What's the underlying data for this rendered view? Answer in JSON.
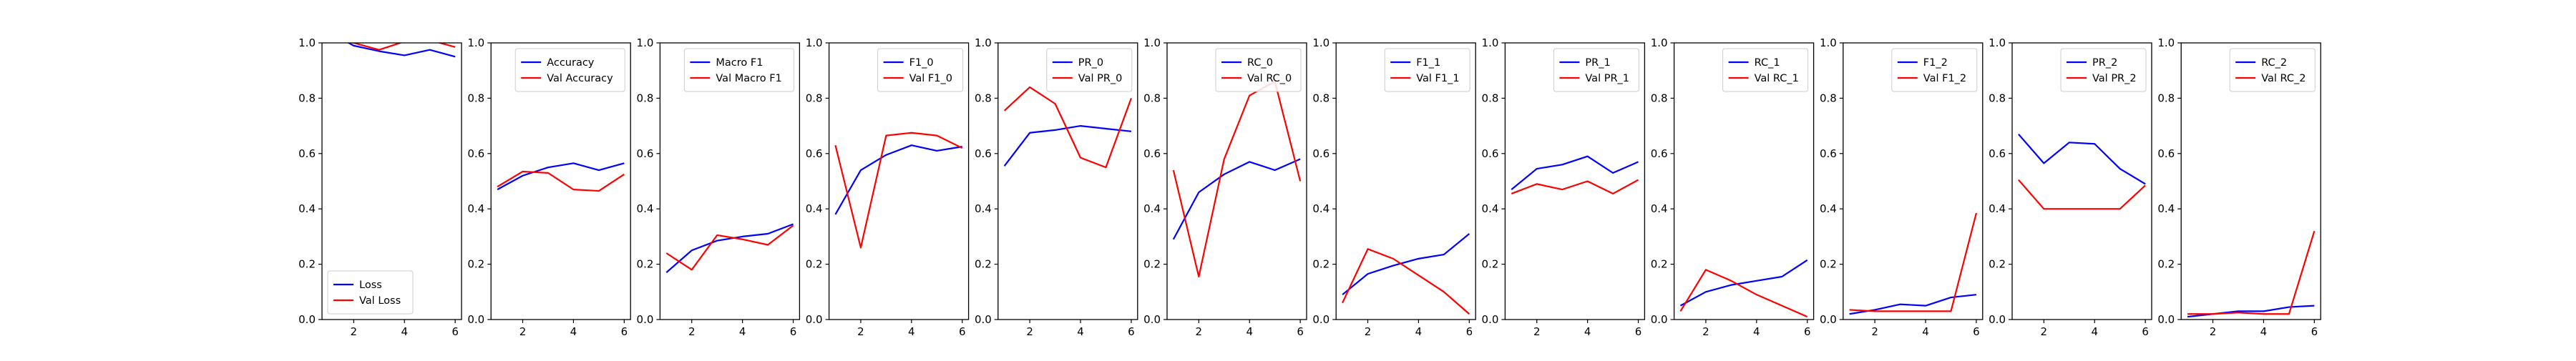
{
  "chart_data": [
    {
      "type": "line",
      "x": [
        1,
        2,
        3,
        4,
        5,
        6
      ],
      "xticks": [
        "2",
        "4",
        "6"
      ],
      "yticks": [
        "0.0",
        "0.2",
        "0.4",
        "0.6",
        "0.8",
        "1.0"
      ],
      "ylim": [
        0,
        1
      ],
      "legend_loc": "lower-left",
      "series": [
        {
          "name": "Loss",
          "color": "#0000ff",
          "values": [
            1.04,
            0.99,
            0.97,
            0.955,
            0.975,
            0.95
          ]
        },
        {
          "name": "Val Loss",
          "color": "#ff0000",
          "values": [
            1.02,
            1.0,
            0.975,
            1.005,
            1.01,
            0.985
          ]
        }
      ]
    },
    {
      "type": "line",
      "x": [
        1,
        2,
        3,
        4,
        5,
        6
      ],
      "xticks": [
        "2",
        "4",
        "6"
      ],
      "yticks": [
        "0.0",
        "0.2",
        "0.4",
        "0.6",
        "0.8",
        "1.0"
      ],
      "ylim": [
        0,
        1
      ],
      "legend_loc": "upper-right",
      "series": [
        {
          "name": "Accuracy",
          "color": "#0000ff",
          "values": [
            0.47,
            0.52,
            0.55,
            0.565,
            0.54,
            0.565
          ]
        },
        {
          "name": "Val Accuracy",
          "color": "#ff0000",
          "values": [
            0.48,
            0.535,
            0.53,
            0.47,
            0.465,
            0.525
          ]
        }
      ]
    },
    {
      "type": "line",
      "x": [
        1,
        2,
        3,
        4,
        5,
        6
      ],
      "xticks": [
        "2",
        "4",
        "6"
      ],
      "yticks": [
        "0.0",
        "0.2",
        "0.4",
        "0.6",
        "0.8",
        "1.0"
      ],
      "ylim": [
        0,
        1
      ],
      "legend_loc": "upper-right",
      "series": [
        {
          "name": "Macro F1",
          "color": "#0000ff",
          "values": [
            0.17,
            0.25,
            0.285,
            0.3,
            0.31,
            0.345
          ]
        },
        {
          "name": "Val Macro F1",
          "color": "#ff0000",
          "values": [
            0.24,
            0.18,
            0.305,
            0.29,
            0.27,
            0.34
          ]
        }
      ]
    },
    {
      "type": "line",
      "x": [
        1,
        2,
        3,
        4,
        5,
        6
      ],
      "xticks": [
        "2",
        "4",
        "6"
      ],
      "yticks": [
        "0.0",
        "0.2",
        "0.4",
        "0.6",
        "0.8",
        "1.0"
      ],
      "ylim": [
        0,
        1
      ],
      "legend_loc": "upper-right",
      "series": [
        {
          "name": "F1_0",
          "color": "#0000ff",
          "values": [
            0.38,
            0.54,
            0.595,
            0.63,
            0.61,
            0.625
          ]
        },
        {
          "name": "Val F1_0",
          "color": "#ff0000",
          "values": [
            0.63,
            0.26,
            0.665,
            0.675,
            0.665,
            0.62
          ]
        }
      ]
    },
    {
      "type": "line",
      "x": [
        1,
        2,
        3,
        4,
        5,
        6
      ],
      "xticks": [
        "2",
        "4",
        "6"
      ],
      "yticks": [
        "0.0",
        "0.2",
        "0.4",
        "0.6",
        "0.8",
        "1.0"
      ],
      "ylim": [
        0,
        1
      ],
      "legend_loc": "upper-right",
      "series": [
        {
          "name": "PR_0",
          "color": "#0000ff",
          "values": [
            0.555,
            0.675,
            0.685,
            0.7,
            0.69,
            0.68
          ]
        },
        {
          "name": "Val PR_0",
          "color": "#ff0000",
          "values": [
            0.755,
            0.84,
            0.78,
            0.585,
            0.55,
            0.8
          ]
        }
      ]
    },
    {
      "type": "line",
      "x": [
        1,
        2,
        3,
        4,
        5,
        6
      ],
      "xticks": [
        "2",
        "4",
        "6"
      ],
      "yticks": [
        "0.0",
        "0.2",
        "0.4",
        "0.6",
        "0.8",
        "1.0"
      ],
      "ylim": [
        0,
        1
      ],
      "legend_loc": "upper-right",
      "series": [
        {
          "name": "RC_0",
          "color": "#0000ff",
          "values": [
            0.29,
            0.46,
            0.525,
            0.57,
            0.54,
            0.58
          ]
        },
        {
          "name": "Val RC_0",
          "color": "#ff0000",
          "values": [
            0.54,
            0.155,
            0.58,
            0.81,
            0.86,
            0.5
          ]
        }
      ]
    },
    {
      "type": "line",
      "x": [
        1,
        2,
        3,
        4,
        5,
        6
      ],
      "xticks": [
        "2",
        "4",
        "6"
      ],
      "yticks": [
        "0.0",
        "0.2",
        "0.4",
        "0.6",
        "0.8",
        "1.0"
      ],
      "ylim": [
        0,
        1
      ],
      "legend_loc": "upper-right",
      "series": [
        {
          "name": "F1_1",
          "color": "#0000ff",
          "values": [
            0.09,
            0.165,
            0.195,
            0.22,
            0.235,
            0.31
          ]
        },
        {
          "name": "Val F1_1",
          "color": "#ff0000",
          "values": [
            0.06,
            0.255,
            0.22,
            0.16,
            0.1,
            0.02
          ]
        }
      ]
    },
    {
      "type": "line",
      "x": [
        1,
        2,
        3,
        4,
        5,
        6
      ],
      "xticks": [
        "2",
        "4",
        "6"
      ],
      "yticks": [
        "0.0",
        "0.2",
        "0.4",
        "0.6",
        "0.8",
        "1.0"
      ],
      "ylim": [
        0,
        1
      ],
      "legend_loc": "upper-right",
      "series": [
        {
          "name": "PR_1",
          "color": "#0000ff",
          "values": [
            0.47,
            0.545,
            0.56,
            0.59,
            0.53,
            0.57
          ]
        },
        {
          "name": "Val PR_1",
          "color": "#ff0000",
          "values": [
            0.455,
            0.49,
            0.47,
            0.5,
            0.455,
            0.505
          ]
        }
      ]
    },
    {
      "type": "line",
      "x": [
        1,
        2,
        3,
        4,
        5,
        6
      ],
      "xticks": [
        "2",
        "4",
        "6"
      ],
      "yticks": [
        "0.0",
        "0.2",
        "0.4",
        "0.6",
        "0.8",
        "1.0"
      ],
      "ylim": [
        0,
        1
      ],
      "legend_loc": "upper-right",
      "series": [
        {
          "name": "RC_1",
          "color": "#0000ff",
          "values": [
            0.05,
            0.1,
            0.125,
            0.14,
            0.155,
            0.215
          ]
        },
        {
          "name": "Val RC_1",
          "color": "#ff0000",
          "values": [
            0.03,
            0.18,
            0.14,
            0.09,
            0.05,
            0.01
          ]
        }
      ]
    },
    {
      "type": "line",
      "x": [
        1,
        2,
        3,
        4,
        5,
        6
      ],
      "xticks": [
        "2",
        "4",
        "6"
      ],
      "yticks": [
        "0.0",
        "0.2",
        "0.4",
        "0.6",
        "0.8",
        "1.0"
      ],
      "ylim": [
        0,
        1
      ],
      "legend_loc": "upper-right",
      "series": [
        {
          "name": "F1_2",
          "color": "#0000ff",
          "values": [
            0.02,
            0.035,
            0.055,
            0.05,
            0.08,
            0.09
          ]
        },
        {
          "name": "Val F1_2",
          "color": "#ff0000",
          "values": [
            0.035,
            0.03,
            0.03,
            0.03,
            0.03,
            0.385
          ]
        }
      ]
    },
    {
      "type": "line",
      "x": [
        1,
        2,
        3,
        4,
        5,
        6
      ],
      "xticks": [
        "2",
        "4",
        "6"
      ],
      "yticks": [
        "0.0",
        "0.2",
        "0.4",
        "0.6",
        "0.8",
        "1.0"
      ],
      "ylim": [
        0,
        1
      ],
      "legend_loc": "upper-right",
      "series": [
        {
          "name": "PR_2",
          "color": "#0000ff",
          "values": [
            0.67,
            0.565,
            0.64,
            0.635,
            0.545,
            0.49
          ]
        },
        {
          "name": "Val PR_2",
          "color": "#ff0000",
          "values": [
            0.505,
            0.4,
            0.4,
            0.4,
            0.4,
            0.485
          ]
        }
      ]
    },
    {
      "type": "line",
      "x": [
        1,
        2,
        3,
        4,
        5,
        6
      ],
      "xticks": [
        "2",
        "4",
        "6"
      ],
      "yticks": [
        "0.0",
        "0.2",
        "0.4",
        "0.6",
        "0.8",
        "1.0"
      ],
      "ylim": [
        0,
        1
      ],
      "legend_loc": "upper-right",
      "series": [
        {
          "name": "RC_2",
          "color": "#0000ff",
          "values": [
            0.01,
            0.02,
            0.03,
            0.03,
            0.045,
            0.05
          ]
        },
        {
          "name": "Val RC_2",
          "color": "#ff0000",
          "values": [
            0.02,
            0.02,
            0.025,
            0.02,
            0.02,
            0.32
          ]
        }
      ]
    }
  ]
}
